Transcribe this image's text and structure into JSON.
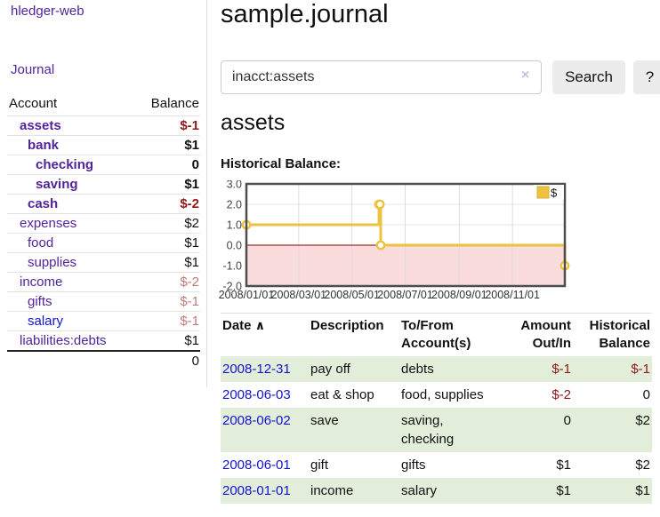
{
  "app": {
    "title": "hledger-web",
    "journal_link": "Journal"
  },
  "colors": {
    "link_purple": "#52239b",
    "link_blue": "#1414cc",
    "negative_red": "#8e1919",
    "negative_faint": "#c07a7a",
    "row_green": "#e2eeda",
    "chart_gold": "#edc240",
    "chart_gold_dark": "#d5b33c",
    "chart_negative_fill": "#fbdcdc",
    "chart_zero_line": "#8b0000"
  },
  "sidebar": {
    "columns": {
      "account": "Account",
      "balance": "Balance"
    },
    "accounts": [
      {
        "name": "assets",
        "depth": 1,
        "bold": true,
        "balance": "$-1",
        "balance_style": "neg"
      },
      {
        "name": "bank",
        "depth": 2,
        "bold": true,
        "balance": "$1",
        "balance_style": "pos"
      },
      {
        "name": "checking",
        "depth": 3,
        "bold": true,
        "balance": "0",
        "balance_style": "pos"
      },
      {
        "name": "saving",
        "depth": 3,
        "bold": true,
        "balance": "$1",
        "balance_style": "pos"
      },
      {
        "name": "cash",
        "depth": 2,
        "bold": true,
        "balance": "$-2",
        "balance_style": "neg"
      },
      {
        "name": "expenses",
        "depth": 1,
        "bold": false,
        "balance": "$2",
        "balance_style": "pos"
      },
      {
        "name": "food",
        "depth": 2,
        "bold": false,
        "balance": "$1",
        "balance_style": "pos"
      },
      {
        "name": "supplies",
        "depth": 2,
        "bold": false,
        "balance": "$1",
        "balance_style": "pos"
      },
      {
        "name": "income",
        "depth": 1,
        "bold": false,
        "balance": "$-2",
        "balance_style": "negf"
      },
      {
        "name": "gifts",
        "depth": 2,
        "bold": false,
        "balance": "$-1",
        "balance_style": "negf"
      },
      {
        "name": "salary",
        "depth": 2,
        "bold": false,
        "balance": "$-1",
        "balance_style": "negf",
        "link_style": "unvisited"
      },
      {
        "name": "liabilities:debts",
        "depth": 1,
        "bold": false,
        "balance": "$1",
        "balance_style": "pos"
      }
    ],
    "total": "0"
  },
  "header": {
    "title": "sample.journal"
  },
  "search": {
    "value": "inacct:assets",
    "clear_icon": "×",
    "button_label": "Search",
    "help_label": "?"
  },
  "account_page": {
    "heading": "assets",
    "chart_label": "Historical Balance:"
  },
  "chart_data": {
    "type": "line",
    "step": true,
    "title": "Historical Balance:",
    "series": [
      {
        "name": "$",
        "points": [
          [
            "2008-01-01",
            1
          ],
          [
            "2008-06-01",
            2
          ],
          [
            "2008-06-02",
            2
          ],
          [
            "2008-06-03",
            0
          ],
          [
            "2008-12-31",
            -1
          ]
        ]
      }
    ],
    "xlim": [
      "2008-01-01",
      "2008-12-31"
    ],
    "ylim": [
      -2,
      3
    ],
    "y_ticks": [
      "3.0",
      "2.0",
      "1.0",
      "0.0",
      "-1.0",
      "-2.0"
    ],
    "x_ticks": [
      "2008/01/01",
      "2008/03/01",
      "2008/05/01",
      "2008/07/01",
      "2008/09/01",
      "2008/11/01"
    ],
    "grid": true,
    "legend_position": "top-right",
    "negative_region_shaded": true
  },
  "register": {
    "columns": {
      "date": "Date",
      "sort_indicator": "∧",
      "description": "Description",
      "accounts": "To/From Account(s)",
      "amount": "Amount Out/In",
      "balance": "Historical Balance"
    },
    "rows": [
      {
        "date": "2008-12-31",
        "description": "pay off",
        "accounts": "debts",
        "amount": "$-1",
        "amount_neg": true,
        "balance": "$-1",
        "balance_neg": true
      },
      {
        "date": "2008-06-03",
        "description": "eat & shop",
        "accounts": "food, supplies",
        "amount": "$-2",
        "amount_neg": true,
        "balance": "0",
        "balance_neg": false
      },
      {
        "date": "2008-06-02",
        "description": "save",
        "accounts": "saving, checking",
        "amount": "0",
        "amount_neg": false,
        "balance": "$2",
        "balance_neg": false
      },
      {
        "date": "2008-06-01",
        "description": "gift",
        "accounts": "gifts",
        "amount": "$1",
        "amount_neg": false,
        "balance": "$2",
        "balance_neg": false
      },
      {
        "date": "2008-01-01",
        "description": "income",
        "accounts": "salary",
        "amount": "$1",
        "amount_neg": false,
        "balance": "$1",
        "balance_neg": false
      }
    ]
  }
}
